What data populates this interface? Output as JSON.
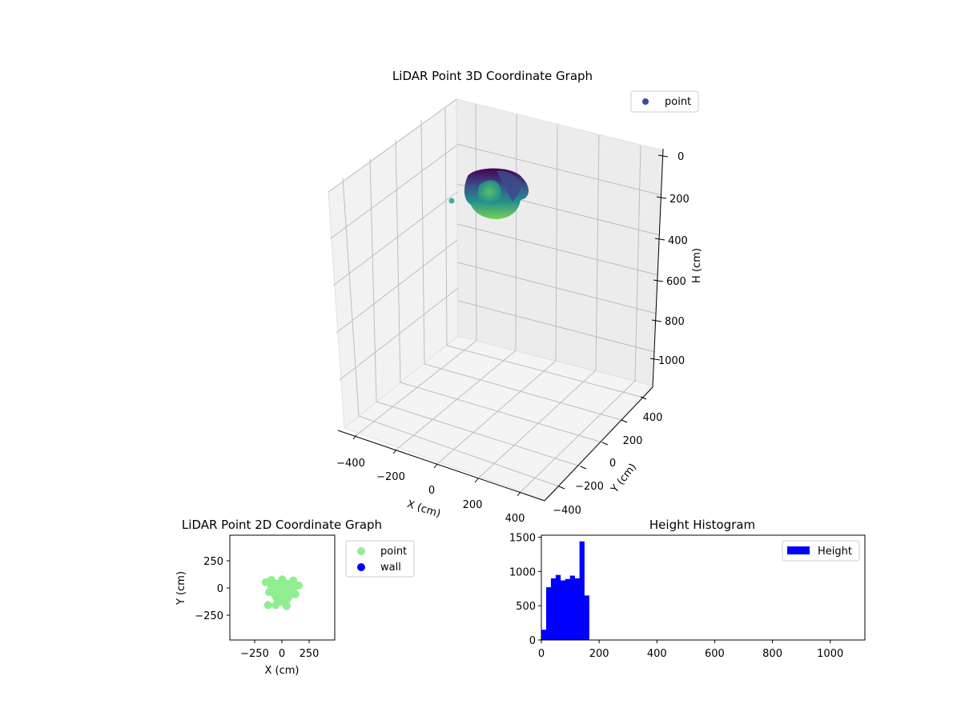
{
  "chart_data": [
    {
      "type": "scatter3d",
      "title": "LiDAR Point 3D Coordinate Graph",
      "xlabel": "X (cm)",
      "ylabel": "Y (cm)",
      "zlabel": "H (cm)",
      "x_ticks": [
        "−400",
        "−200",
        "0",
        "200",
        "400"
      ],
      "y_ticks": [
        "−400",
        "−200",
        "0",
        "200",
        "400"
      ],
      "z_ticks": [
        "0",
        "200",
        "400",
        "600",
        "800",
        "1000"
      ],
      "xlim": [
        -500,
        500
      ],
      "ylim": [
        -500,
        500
      ],
      "zlim": [
        0,
        1100
      ],
      "z_inverted": true,
      "colormap": "viridis",
      "legend": [
        {
          "label": "point",
          "color": "#3b4d8e"
        }
      ],
      "legend_position": "upper right",
      "grid": true
    },
    {
      "type": "scatter",
      "title": "LiDAR Point 2D Coordinate Graph",
      "xlabel": "X (cm)",
      "ylabel": "Y (cm)",
      "x_ticks": [
        "−250",
        "0",
        "250"
      ],
      "y_ticks": [
        "250",
        "0",
        "−250"
      ],
      "xlim": [
        -480,
        480
      ],
      "ylim": [
        -480,
        480
      ],
      "series": [
        {
          "name": "point",
          "color": "#90ee90",
          "points": [
            [
              -150,
              50
            ],
            [
              -100,
              70
            ],
            [
              0,
              75
            ],
            [
              100,
              65
            ],
            [
              150,
              20
            ],
            [
              120,
              -60
            ],
            [
              40,
              -170
            ],
            [
              -60,
              -160
            ],
            [
              -120,
              -40
            ],
            [
              -130,
              -160
            ]
          ]
        },
        {
          "name": "wall",
          "color": "#0000ff",
          "points": []
        }
      ],
      "legend_position": "outside right"
    },
    {
      "type": "bar",
      "title": "Height Histogram",
      "xlabel": "",
      "ylabel": "",
      "x_ticks": [
        "0",
        "200",
        "400",
        "600",
        "800",
        "1000"
      ],
      "y_ticks": [
        "0",
        "500",
        "1000",
        "1500"
      ],
      "xlim": [
        0,
        1120
      ],
      "ylim": [
        0,
        1530
      ],
      "bin_width": 16.5,
      "bin_start": 0,
      "values": [
        150,
        770,
        900,
        950,
        870,
        890,
        940,
        900,
        1440,
        650
      ],
      "series_name": "Height",
      "color": "#0000ff",
      "legend_position": "upper right"
    }
  ]
}
